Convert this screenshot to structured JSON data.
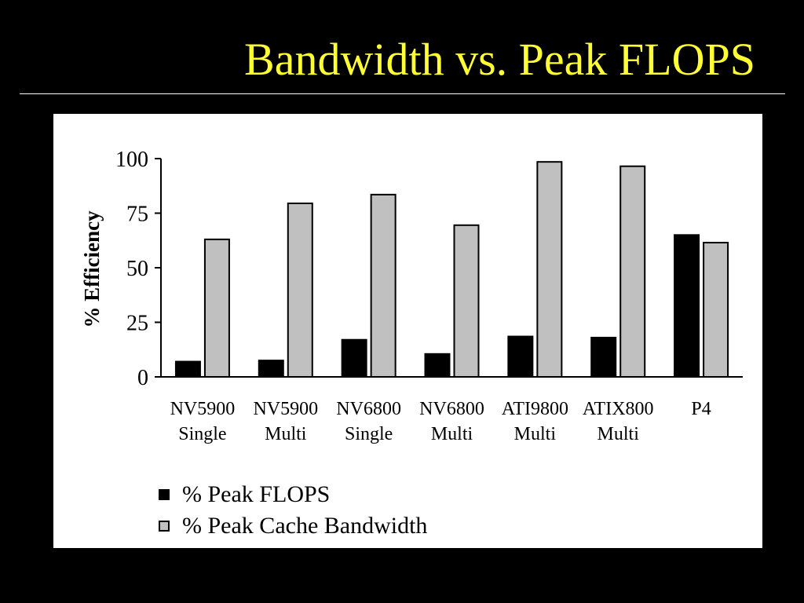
{
  "slide": {
    "title": "Bandwidth vs. Peak FLOPS"
  },
  "chart_data": {
    "type": "bar",
    "title": "",
    "xlabel": "",
    "ylabel": "% Efficiency",
    "ylim": [
      0,
      100
    ],
    "yticks": [
      0,
      25,
      50,
      75,
      100
    ],
    "categories": [
      [
        "NV5900",
        "Single"
      ],
      [
        "NV5900",
        "Multi"
      ],
      [
        "NV6800",
        "Single"
      ],
      [
        "NV6800",
        "Multi"
      ],
      [
        "ATI9800",
        "Multi"
      ],
      [
        "ATIX800",
        "Multi"
      ],
      [
        "P4",
        ""
      ]
    ],
    "series": [
      {
        "name": "% Peak FLOPS",
        "color": "#000000",
        "values": [
          7,
          7.5,
          17,
          10.5,
          18.5,
          18,
          65
        ]
      },
      {
        "name": "% Peak Cache Bandwidth",
        "color": "#c0c0c0",
        "values": [
          63,
          79.5,
          83.5,
          69.5,
          98.5,
          96.5,
          61.5
        ]
      }
    ],
    "grid": false,
    "legend": "bottom-left"
  }
}
